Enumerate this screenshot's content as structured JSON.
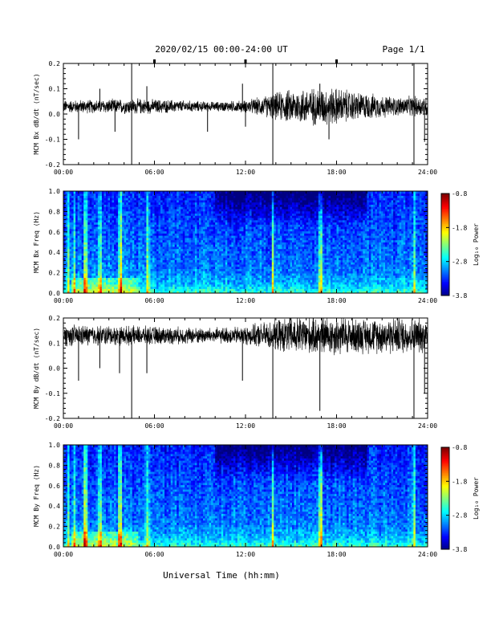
{
  "header": {
    "title": "2020/02/15  00:00-24:00 UT",
    "page": "Page 1/1"
  },
  "footer": {
    "xlabel": "Universal Time (hh:mm)"
  },
  "colors": {
    "trace": "#000000",
    "background": "#ffffff",
    "spectrogram_low": "#1a2fc8",
    "spectrogram_high": "#ff0000"
  },
  "chart_data": [
    {
      "type": "line",
      "ylabel": "MCM Bx dB/dt (nT/sec)",
      "xlim": [
        0,
        24
      ],
      "ylim": [
        -0.2,
        0.2
      ],
      "x_ticks": [
        "00:00",
        "06:00",
        "12:00",
        "18:00",
        "24:00"
      ],
      "y_ticks": [
        "-0.2",
        "-0.1",
        "0.0",
        "0.1",
        "0.2"
      ],
      "baseline": 0.03,
      "noise_envelope": [
        [
          0,
          0.02
        ],
        [
          5,
          0.025
        ],
        [
          10,
          0.015
        ],
        [
          12,
          0.02
        ],
        [
          13,
          0.03
        ],
        [
          14.5,
          0.05
        ],
        [
          16,
          0.06
        ],
        [
          18,
          0.06
        ],
        [
          19.5,
          0.045
        ],
        [
          22,
          0.03
        ],
        [
          24,
          0.035
        ]
      ],
      "spikes": [
        [
          1.0,
          -0.1
        ],
        [
          2.4,
          0.1
        ],
        [
          3.4,
          -0.07
        ],
        [
          4.5,
          0.22
        ],
        [
          4.5,
          -0.2
        ],
        [
          5.5,
          0.11
        ],
        [
          9.5,
          -0.07
        ],
        [
          11.8,
          0.12
        ],
        [
          12.0,
          -0.05
        ],
        [
          13.8,
          -0.2
        ],
        [
          13.8,
          0.2
        ],
        [
          16.9,
          0.12
        ],
        [
          17.5,
          -0.1
        ],
        [
          23.1,
          0.22
        ],
        [
          23.1,
          -0.21
        ],
        [
          23.8,
          -0.11
        ]
      ]
    },
    {
      "type": "heatmap",
      "ylabel": "MCM Bx Freq (Hz)",
      "colorbar_label": "Log₁₀ Power",
      "colorbar_ticks": [
        "-0.8",
        "-1.8",
        "-2.8",
        "-3.8"
      ],
      "zlim": [
        -3.8,
        -0.8
      ],
      "xlim": [
        0,
        24
      ],
      "ylim": [
        0,
        1
      ],
      "x_ticks": [
        "00:00",
        "06:00",
        "12:00",
        "18:00",
        "24:00"
      ],
      "y_ticks": [
        "0.0",
        "0.2",
        "0.4",
        "0.6",
        "0.8",
        "1.0"
      ],
      "bright_bands_hours": [
        0.3,
        0.7,
        1.4,
        1.5,
        2.4,
        2.5,
        3.7,
        3.8,
        5.5,
        5.6,
        13.8,
        16.9,
        17.0,
        23.1
      ],
      "background_level": -3.0,
      "high_freq_dark_zone": [
        [
          10,
          20
        ]
      ]
    },
    {
      "type": "line",
      "ylabel": "MCM By dB/dt (nT/sec)",
      "xlim": [
        0,
        24
      ],
      "ylim": [
        -0.2,
        0.2
      ],
      "x_ticks": [
        "00:00",
        "06:00",
        "12:00",
        "18:00",
        "24:00"
      ],
      "y_ticks": [
        "-0.2",
        "-0.1",
        "0.0",
        "0.1",
        "0.2"
      ],
      "baseline": 0.13,
      "noise_envelope": [
        [
          0,
          0.035
        ],
        [
          5,
          0.03
        ],
        [
          10,
          0.025
        ],
        [
          12,
          0.03
        ],
        [
          13.5,
          0.045
        ],
        [
          15,
          0.06
        ],
        [
          18,
          0.065
        ],
        [
          20,
          0.055
        ],
        [
          22,
          0.06
        ],
        [
          24,
          0.055
        ]
      ],
      "spikes": [
        [
          1.0,
          -0.05
        ],
        [
          2.4,
          0.0
        ],
        [
          3.7,
          -0.02
        ],
        [
          4.5,
          -0.21
        ],
        [
          5.5,
          -0.02
        ],
        [
          11.8,
          -0.05
        ],
        [
          13.8,
          -0.21
        ],
        [
          16.9,
          -0.17
        ],
        [
          23.1,
          -0.21
        ],
        [
          23.8,
          -0.1
        ]
      ]
    },
    {
      "type": "heatmap",
      "ylabel": "MCM By Freq (Hz)",
      "colorbar_label": "Log₁₀ Power",
      "colorbar_ticks": [
        "-0.8",
        "-1.8",
        "-2.8",
        "-3.8"
      ],
      "zlim": [
        -3.8,
        -0.8
      ],
      "xlim": [
        0,
        24
      ],
      "ylim": [
        0,
        1
      ],
      "x_ticks": [
        "00:00",
        "06:00",
        "12:00",
        "18:00",
        "24:00"
      ],
      "y_ticks": [
        "0.0",
        "0.2",
        "0.4",
        "0.6",
        "0.8",
        "1.0"
      ],
      "bright_bands_hours": [
        0.3,
        0.7,
        1.4,
        1.5,
        2.4,
        2.5,
        3.7,
        3.8,
        5.5,
        5.6,
        13.8,
        16.9,
        17.0,
        23.1
      ],
      "background_level": -3.0,
      "high_freq_dark_zone": [
        [
          10,
          20
        ]
      ]
    }
  ]
}
